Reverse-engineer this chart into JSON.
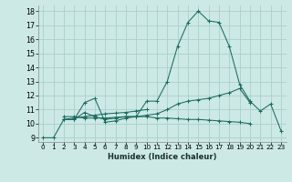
{
  "xlabel": "Humidex (Indice chaleur)",
  "bg_color": "#cce9e5",
  "grid_color": "#aacfcc",
  "line_color": "#1a6b60",
  "xlim": [
    -0.5,
    23.5
  ],
  "ylim": [
    8.7,
    18.4
  ],
  "xticks": [
    0,
    1,
    2,
    3,
    4,
    5,
    6,
    7,
    8,
    9,
    10,
    11,
    12,
    13,
    14,
    15,
    16,
    17,
    18,
    19,
    20,
    21,
    22,
    23
  ],
  "yticks": [
    9,
    10,
    11,
    12,
    13,
    14,
    15,
    16,
    17,
    18
  ],
  "lines": [
    {
      "x": [
        0,
        1,
        2,
        3,
        4,
        5,
        6,
        7,
        8,
        9,
        10,
        11,
        12,
        13,
        14,
        15,
        16,
        17,
        18,
        19,
        20,
        21,
        22,
        23
      ],
      "y": [
        9.0,
        9.0,
        10.3,
        10.3,
        11.5,
        11.8,
        10.1,
        10.2,
        10.4,
        10.5,
        11.6,
        11.6,
        13.0,
        15.5,
        17.2,
        18.0,
        17.3,
        17.2,
        15.5,
        12.8,
        11.6,
        10.9,
        11.4,
        9.5
      ]
    },
    {
      "x": [
        2,
        3,
        4,
        5,
        6,
        7,
        8,
        9,
        10,
        11,
        12,
        13,
        14,
        15,
        16,
        17,
        18,
        19,
        20
      ],
      "y": [
        10.3,
        10.3,
        10.8,
        10.5,
        10.3,
        10.4,
        10.5,
        10.5,
        10.6,
        10.7,
        11.0,
        11.4,
        11.6,
        11.7,
        11.8,
        12.0,
        12.2,
        12.5,
        11.5
      ]
    },
    {
      "x": [
        2,
        3,
        4,
        5,
        6,
        7,
        8,
        9,
        10
      ],
      "y": [
        10.3,
        10.4,
        10.5,
        10.6,
        10.7,
        10.75,
        10.8,
        10.9,
        11.0
      ]
    },
    {
      "x": [
        2,
        3,
        4,
        5,
        6,
        7,
        8,
        9,
        10,
        11,
        12,
        13,
        14,
        15,
        16,
        17,
        18,
        19,
        20
      ],
      "y": [
        10.5,
        10.5,
        10.4,
        10.4,
        10.4,
        10.45,
        10.5,
        10.5,
        10.5,
        10.4,
        10.4,
        10.35,
        10.3,
        10.3,
        10.25,
        10.2,
        10.15,
        10.1,
        10.0
      ]
    }
  ]
}
